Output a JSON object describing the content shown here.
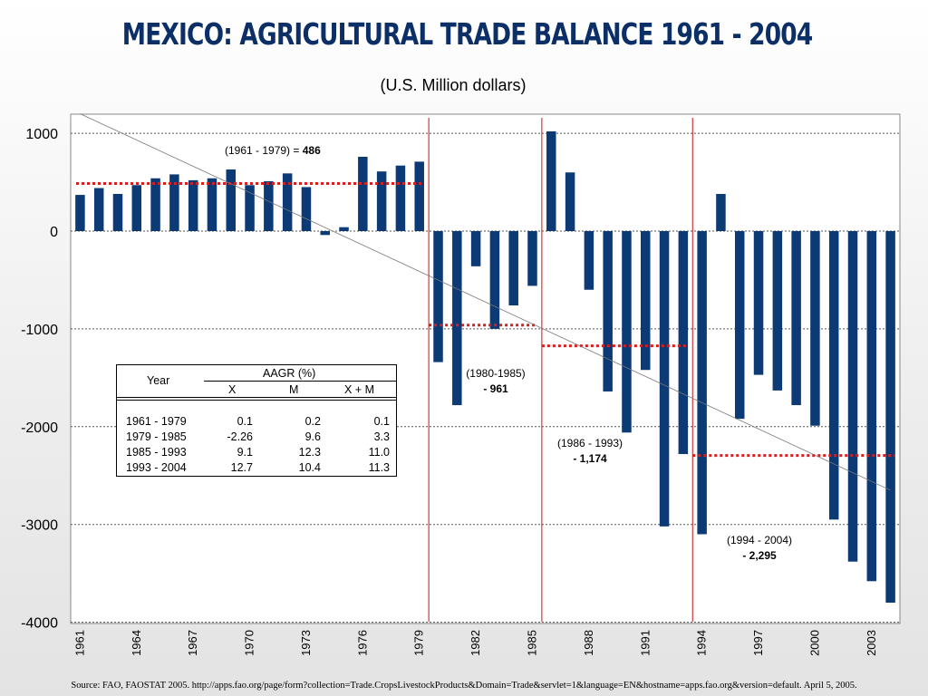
{
  "title": "MEXICO: AGRICULTURAL TRADE BALANCE 1961 - 2004",
  "subtitle": "(U.S. Million dollars)",
  "source": "Source: FAO, FAOSTAT 2005.  http://apps.fao.org/page/form?collection=Trade.CropsLivestockProducts&Domain=Trade&servlet=1&language=EN&hostname=apps.fao.org&version=default. April 5, 2005.",
  "colors": {
    "bar": "#0b3a75",
    "avg_line": "#d81e1e",
    "period_line": "#cc1111",
    "trend_line": "#777777",
    "grid": "#555555"
  },
  "chart_data": {
    "type": "bar",
    "categories": [
      "1961",
      "1962",
      "1963",
      "1964",
      "1965",
      "1966",
      "1967",
      "1968",
      "1969",
      "1970",
      "1971",
      "1972",
      "1973",
      "1974",
      "1975",
      "1976",
      "1977",
      "1978",
      "1979",
      "1980",
      "1981",
      "1982",
      "1983",
      "1984",
      "1985",
      "1986",
      "1987",
      "1988",
      "1989",
      "1990",
      "1991",
      "1992",
      "1993",
      "1994",
      "1995",
      "1996",
      "1997",
      "1998",
      "1999",
      "2000",
      "2001",
      "2002",
      "2003",
      "2004"
    ],
    "tick_labels": [
      "1961",
      "1964",
      "1967",
      "1970",
      "1973",
      "1976",
      "1979",
      "1982",
      "1985",
      "1988",
      "1991",
      "1994",
      "1997",
      "2000",
      "2003"
    ],
    "series": [
      {
        "values": [
          370,
          440,
          380,
          470,
          540,
          580,
          520,
          540,
          630,
          470,
          510,
          590,
          450,
          -40,
          40,
          760,
          610,
          670,
          710,
          -1340,
          -1780,
          -360,
          -1000,
          -760,
          -560,
          1020,
          600,
          -600,
          -1640,
          -2060,
          -1420,
          -3020,
          -2280,
          -3100,
          380,
          -1920,
          -1470,
          -1630,
          -1780,
          -1990,
          -2950,
          -3380,
          -3580,
          -3800
        ]
      }
    ],
    "ylim": [
      -4000,
      1100
    ],
    "yticks": [
      1000,
      0,
      -1000,
      -2000,
      -3000,
      -4000
    ],
    "ytick_labels": [
      "1000",
      "0",
      "-1000",
      "-2000",
      "-3000",
      "-4000"
    ],
    "grid": true,
    "period_averages": [
      {
        "from": "1961",
        "to": "1979",
        "value": 486,
        "label": "(1961 - 1979) = ",
        "value_label": "486"
      },
      {
        "from": "1980",
        "to": "1985",
        "value": -961,
        "label": "(1980-1985)",
        "value_label": "- 961"
      },
      {
        "from": "1986",
        "to": "1993",
        "value": -1174,
        "label": "(1986 - 1993)",
        "value_label": "- 1,174"
      },
      {
        "from": "1994",
        "to": "2004",
        "value": -2295,
        "label": "(1994 - 2004)",
        "value_label": "- 2,295"
      }
    ],
    "period_dividers": [
      "1979/1980",
      "1985/1986",
      "1993/1994"
    ],
    "trend_line": {
      "from": [
        "1961",
        1200
      ],
      "to": [
        "2004",
        -2650
      ]
    }
  },
  "aagr_table": {
    "year_header": "Year",
    "group_header": "AAGR  (%)",
    "columns": [
      "X",
      "M",
      "X + M"
    ],
    "rows": [
      {
        "year": "1961 - 1979",
        "x": "0.1",
        "m": "0.2",
        "xm": "0.1"
      },
      {
        "year": "1979 - 1985",
        "x": "-2.26",
        "m": "9.6",
        "xm": "3.3"
      },
      {
        "year": "1985 - 1993",
        "x": "9.1",
        "m": "12.3",
        "xm": "11.0"
      },
      {
        "year": "1993 - 2004",
        "x": "12.7",
        "m": "10.4",
        "xm": "11.3"
      }
    ]
  }
}
